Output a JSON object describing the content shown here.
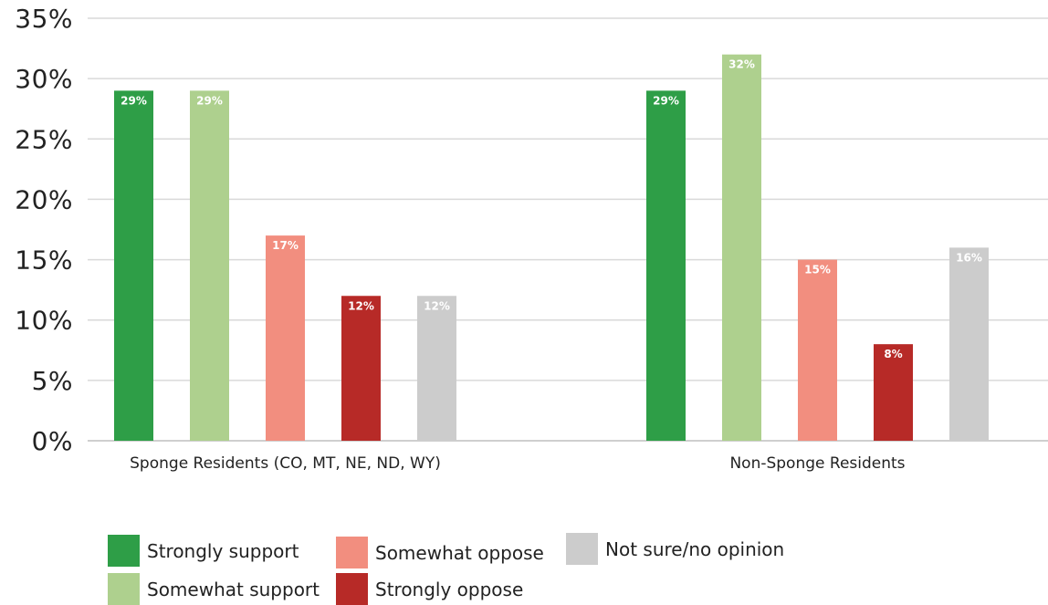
{
  "chart_data": {
    "type": "bar",
    "categories": [
      "Sponge Residents (CO, MT, NE, ND, WY)",
      "Non-Sponge Residents"
    ],
    "series": [
      {
        "name": "Strongly support",
        "color": "#2e9e47",
        "values": [
          29,
          29
        ],
        "labels": [
          "29%",
          "29%"
        ]
      },
      {
        "name": "Somewhat support",
        "color": "#aed08e",
        "values": [
          29,
          32
        ],
        "labels": [
          "29%",
          "32%"
        ]
      },
      {
        "name": "Somewhat oppose",
        "color": "#f28e7f",
        "values": [
          17,
          15
        ],
        "labels": [
          "17%",
          "15%"
        ]
      },
      {
        "name": "Strongly oppose",
        "color": "#b72a27",
        "values": [
          12,
          8
        ],
        "labels": [
          "12%",
          "8%"
        ]
      },
      {
        "name": "Not sure/no opinion",
        "color": "#cccccc",
        "values": [
          12,
          16
        ],
        "labels": [
          "12%",
          "16%"
        ]
      }
    ],
    "yticks": [
      0,
      5,
      10,
      15,
      20,
      25,
      30,
      35
    ],
    "ytick_labels": [
      "0%",
      "5%",
      "10%",
      "15%",
      "20%",
      "25%",
      "30%",
      "35%"
    ],
    "ylim": [
      0,
      35
    ],
    "grid": true,
    "legend_position": "bottom-left",
    "title": "",
    "xlabel": "",
    "ylabel": ""
  }
}
